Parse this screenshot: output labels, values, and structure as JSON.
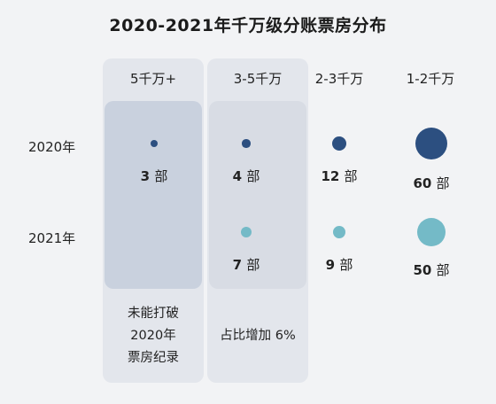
{
  "chart_data": {
    "type": "bubble-table",
    "title": "2020-2021年千万级分账票房分布",
    "categories": [
      "5千万+",
      "3-5千万",
      "2-3千万",
      "1-2千万"
    ],
    "series": [
      {
        "name": "2020年",
        "values": [
          3,
          4,
          12,
          60
        ]
      },
      {
        "name": "2021年",
        "values": [
          null,
          7,
          9,
          50
        ]
      }
    ],
    "unit": "部",
    "annotations": [
      [
        "未能打破",
        "2020年",
        "票房纪录"
      ],
      [
        "占比增加 6%"
      ]
    ],
    "colors": {
      "2020年": "#2c4f80",
      "2021年": "#74bac7"
    }
  }
}
